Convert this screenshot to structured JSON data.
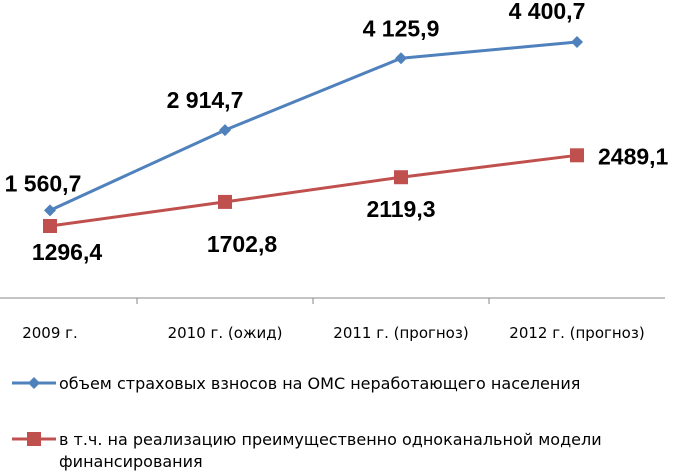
{
  "chart_data": {
    "type": "line",
    "categories": [
      "2009 г.",
      "2010 г. (ожид)",
      "2011 г. (прогноз)",
      "2012 г. (прогноз)"
    ],
    "series": [
      {
        "name": "объем страховых взносов на ОМС неработающего населения",
        "values": [
          1560.7,
          2914.7,
          4125.9,
          4400.7
        ],
        "labels": [
          "1 560,7",
          "2 914,7",
          "4 125,9",
          "4 400,7"
        ],
        "color": "#4F81BD",
        "marker": "diamond"
      },
      {
        "name": "в т.ч. на реализацию преимущественно одноканальной модели финансирования",
        "name_lines": [
          "в т.ч. на реализацию преимущественно одноканальной модели",
          "финансирования"
        ],
        "values": [
          1296.4,
          1702.8,
          2119.3,
          2489.1
        ],
        "labels": [
          "1296,4",
          "1702,8",
          "2119,3",
          "2489,1"
        ],
        "color": "#C0504D",
        "marker": "square"
      }
    ],
    "title": "",
    "xlabel": "",
    "ylabel": "",
    "legend_position": "bottom",
    "grid": false
  }
}
